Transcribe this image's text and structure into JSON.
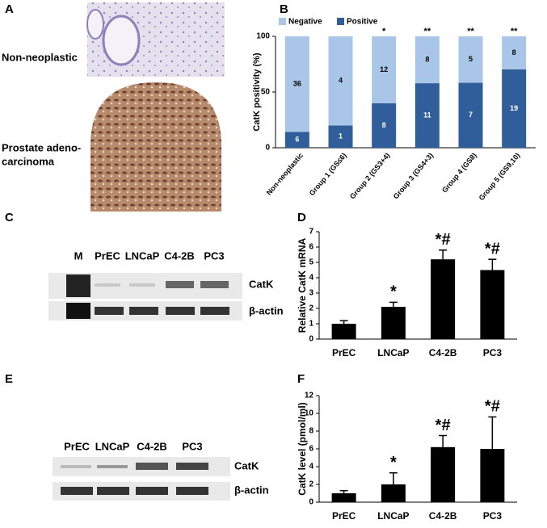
{
  "panel_labels": [
    "A",
    "B",
    "C",
    "D",
    "E",
    "F"
  ],
  "panel_a": {
    "labels": [
      [
        "Non-neoplastic"
      ],
      [
        "Prostate adeno-",
        "carcinoma"
      ]
    ]
  },
  "gel_c": {
    "lanes": [
      "M",
      "PrEC",
      "LNCaP",
      "C4-2B",
      "PC3"
    ],
    "bands": [
      "CatK",
      "β-actin"
    ]
  },
  "gel_e": {
    "lanes": [
      "PrEC",
      "LNCaP",
      "C4-2B",
      "PC3"
    ],
    "bands": [
      "CatK",
      "β-actin"
    ]
  },
  "chart_data": [
    {
      "type": "bar",
      "stacked": true,
      "ylabel": "CatK positivity (%)",
      "categories": [
        "Non-neoplastic",
        "Group 1 (GS≤6)",
        "Group 2 (GS3+4)",
        "Group 3 (GS4+3)",
        "Group 4 (GS8)",
        "Group 5 (GS9,10)"
      ],
      "series": [
        {
          "name": "Negative",
          "color": "#a9c6e8",
          "values": [
            85.7,
            80,
            60,
            42.1,
            41.7,
            29.6
          ],
          "counts": [
            36,
            4,
            12,
            8,
            5,
            8
          ]
        },
        {
          "name": "Positive",
          "color": "#2f5e9a",
          "values": [
            14.3,
            20,
            40,
            57.9,
            58.3,
            70.4
          ],
          "counts": [
            6,
            1,
            8,
            11,
            7,
            19
          ]
        }
      ],
      "annotations": [
        null,
        null,
        "*",
        "**",
        "**",
        "**"
      ],
      "ylim": [
        0,
        100
      ],
      "yticks": [
        0,
        50,
        100
      ],
      "legend": "top-left"
    },
    {
      "type": "bar",
      "ylabel": "Relative CatK mRNA",
      "color": "#000000",
      "categories": [
        "PrEC",
        "LNCaP",
        "C4-2B",
        "PC3"
      ],
      "values": [
        1,
        2.1,
        5.2,
        4.5
      ],
      "errors": [
        0.2,
        0.3,
        0.6,
        0.7
      ],
      "annotations": [
        null,
        "*",
        "*#",
        "*#"
      ],
      "ylim": [
        0,
        7
      ],
      "yticks": [
        0,
        1,
        2,
        3,
        4,
        5,
        6,
        7
      ]
    },
    {
      "type": "bar",
      "ylabel": "CatK level (pmol/ml)",
      "color": "#000000",
      "categories": [
        "PrEC",
        "LNCaP",
        "C4-2B",
        "PC3"
      ],
      "values": [
        1,
        2,
        6.2,
        6
      ],
      "errors": [
        0.3,
        1.3,
        1.3,
        3.6
      ],
      "annotations": [
        null,
        "*",
        "*#",
        "*#"
      ],
      "ylim": [
        0,
        12
      ],
      "yticks": [
        0,
        2,
        4,
        6,
        8,
        10,
        12
      ]
    }
  ]
}
